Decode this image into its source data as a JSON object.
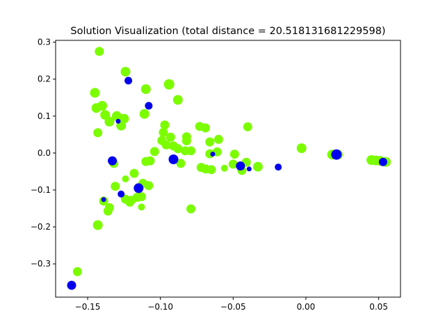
{
  "chart_data": {
    "type": "scatter",
    "title": "Solution Visualization (total distance = 20.518131681229598)",
    "xlabel": "",
    "ylabel": "",
    "xlim": [
      -0.172,
      0.065
    ],
    "ylim": [
      -0.39,
      0.305
    ],
    "x_ticks": [
      {
        "value": -0.15,
        "label": "−0.15"
      },
      {
        "value": -0.1,
        "label": "−0.10"
      },
      {
        "value": -0.05,
        "label": "−0.05"
      },
      {
        "value": 0.0,
        "label": "0.00"
      },
      {
        "value": 0.05,
        "label": "0.05"
      }
    ],
    "y_ticks": [
      {
        "value": -0.3,
        "label": "−0.3"
      },
      {
        "value": -0.2,
        "label": "−0.2"
      },
      {
        "value": -0.1,
        "label": "−0.1"
      },
      {
        "value": 0.0,
        "label": "0.0"
      },
      {
        "value": 0.1,
        "label": "0.1"
      },
      {
        "value": 0.2,
        "label": "0.2"
      },
      {
        "value": 0.3,
        "label": "0.3"
      }
    ],
    "grid": false,
    "legend": "none",
    "series": [
      {
        "color": "#7cfc00",
        "points": [
          {
            "x": -0.142,
            "y": 0.275,
            "s": 6.5
          },
          {
            "x": -0.124,
            "y": 0.22,
            "s": 7
          },
          {
            "x": -0.094,
            "y": 0.186,
            "s": 7.5
          },
          {
            "x": -0.11,
            "y": 0.173,
            "s": 7
          },
          {
            "x": -0.145,
            "y": 0.163,
            "s": 7
          },
          {
            "x": -0.088,
            "y": 0.144,
            "s": 7
          },
          {
            "x": -0.144,
            "y": 0.122,
            "s": 7
          },
          {
            "x": -0.14,
            "y": 0.128,
            "s": 7
          },
          {
            "x": -0.138,
            "y": 0.103,
            "s": 7
          },
          {
            "x": -0.13,
            "y": 0.1,
            "s": 7
          },
          {
            "x": -0.125,
            "y": 0.093,
            "s": 7
          },
          {
            "x": -0.111,
            "y": 0.106,
            "s": 7
          },
          {
            "x": -0.135,
            "y": 0.085,
            "s": 7
          },
          {
            "x": -0.127,
            "y": 0.074,
            "s": 7
          },
          {
            "x": -0.097,
            "y": 0.076,
            "s": 6.5
          },
          {
            "x": -0.143,
            "y": 0.055,
            "s": 6.5
          },
          {
            "x": -0.098,
            "y": 0.056,
            "s": 6.5
          },
          {
            "x": -0.093,
            "y": 0.043,
            "s": 6.5
          },
          {
            "x": -0.082,
            "y": 0.044,
            "s": 6.5
          },
          {
            "x": -0.082,
            "y": 0.033,
            "s": 6.5
          },
          {
            "x": -0.099,
            "y": 0.034,
            "s": 6.5
          },
          {
            "x": -0.073,
            "y": 0.072,
            "s": 6.5
          },
          {
            "x": -0.069,
            "y": 0.068,
            "s": 6.5
          },
          {
            "x": -0.04,
            "y": 0.071,
            "s": 6.5
          },
          {
            "x": -0.06,
            "y": 0.037,
            "s": 6.5
          },
          {
            "x": -0.066,
            "y": 0.03,
            "s": 6.5
          },
          {
            "x": -0.096,
            "y": 0.022,
            "s": 6.5
          },
          {
            "x": -0.091,
            "y": 0.019,
            "s": 6.5
          },
          {
            "x": -0.088,
            "y": 0.012,
            "s": 6.5
          },
          {
            "x": -0.083,
            "y": 0.006,
            "s": 6.5
          },
          {
            "x": -0.079,
            "y": 0.006,
            "s": 6.5
          },
          {
            "x": -0.104,
            "y": 0.004,
            "s": 6.5
          },
          {
            "x": -0.066,
            "y": -0.002,
            "s": 6.5
          },
          {
            "x": -0.061,
            "y": 0.003,
            "s": 6.5
          },
          {
            "x": -0.049,
            "y": -0.003,
            "s": 6.5
          },
          {
            "x": -0.003,
            "y": 0.013,
            "s": 7
          },
          {
            "x": 0.018,
            "y": -0.004,
            "s": 7
          },
          {
            "x": 0.022,
            "y": -0.004,
            "s": 7
          },
          {
            "x": 0.045,
            "y": -0.019,
            "s": 7
          },
          {
            "x": 0.048,
            "y": -0.02,
            "s": 7
          },
          {
            "x": 0.051,
            "y": -0.021,
            "s": 7
          },
          {
            "x": 0.055,
            "y": -0.024,
            "s": 7
          },
          {
            "x": -0.11,
            "y": -0.023,
            "s": 6.5
          },
          {
            "x": -0.107,
            "y": -0.021,
            "s": 6.5
          },
          {
            "x": -0.086,
            "y": -0.028,
            "s": 6.5
          },
          {
            "x": -0.132,
            "y": -0.028,
            "s": 6.5
          },
          {
            "x": -0.072,
            "y": -0.039,
            "s": 6.5
          },
          {
            "x": -0.069,
            "y": -0.043,
            "s": 6.5
          },
          {
            "x": -0.065,
            "y": -0.045,
            "s": 6.5
          },
          {
            "x": -0.056,
            "y": -0.041,
            "s": 5
          },
          {
            "x": -0.05,
            "y": -0.03,
            "s": 6.5
          },
          {
            "x": -0.041,
            "y": -0.025,
            "s": 6.5
          },
          {
            "x": -0.044,
            "y": -0.047,
            "s": 6.5
          },
          {
            "x": -0.033,
            "y": -0.037,
            "s": 7
          },
          {
            "x": -0.118,
            "y": -0.055,
            "s": 6.5
          },
          {
            "x": -0.124,
            "y": -0.07,
            "s": 5
          },
          {
            "x": -0.112,
            "y": -0.082,
            "s": 6.5
          },
          {
            "x": -0.108,
            "y": -0.088,
            "s": 6.5
          },
          {
            "x": -0.131,
            "y": -0.09,
            "s": 6.5
          },
          {
            "x": -0.124,
            "y": -0.125,
            "s": 6.5
          },
          {
            "x": -0.12,
            "y": -0.128,
            "s": 6.5
          },
          {
            "x": -0.116,
            "y": -0.12,
            "s": 6.5
          },
          {
            "x": -0.113,
            "y": -0.118,
            "s": 6.5
          },
          {
            "x": -0.121,
            "y": -0.133,
            "s": 6.5
          },
          {
            "x": -0.139,
            "y": -0.13,
            "s": 6.5
          },
          {
            "x": -0.135,
            "y": -0.148,
            "s": 6.5
          },
          {
            "x": -0.136,
            "y": -0.157,
            "s": 6.5
          },
          {
            "x": -0.113,
            "y": -0.146,
            "s": 5
          },
          {
            "x": -0.079,
            "y": -0.151,
            "s": 6.5
          },
          {
            "x": -0.143,
            "y": -0.195,
            "s": 7
          },
          {
            "x": -0.157,
            "y": -0.321,
            "s": 6.5
          }
        ]
      },
      {
        "color": "#0000ee",
        "points": [
          {
            "x": -0.122,
            "y": 0.196,
            "s": 5.5
          },
          {
            "x": -0.108,
            "y": 0.128,
            "s": 5.5
          },
          {
            "x": -0.129,
            "y": 0.086,
            "s": 3.5
          },
          {
            "x": -0.133,
            "y": -0.021,
            "s": 6.5
          },
          {
            "x": -0.091,
            "y": -0.017,
            "s": 7
          },
          {
            "x": -0.064,
            "y": -0.003,
            "s": 3.5
          },
          {
            "x": -0.045,
            "y": -0.035,
            "s": 6.5
          },
          {
            "x": -0.039,
            "y": -0.043,
            "s": 3.5
          },
          {
            "x": -0.019,
            "y": -0.038,
            "s": 5
          },
          {
            "x": 0.021,
            "y": -0.004,
            "s": 7.5
          },
          {
            "x": 0.053,
            "y": -0.024,
            "s": 6
          },
          {
            "x": -0.115,
            "y": -0.095,
            "s": 7
          },
          {
            "x": -0.127,
            "y": -0.111,
            "s": 5
          },
          {
            "x": -0.139,
            "y": -0.126,
            "s": 3.5
          },
          {
            "x": -0.161,
            "y": -0.358,
            "s": 6.5
          }
        ]
      }
    ]
  }
}
